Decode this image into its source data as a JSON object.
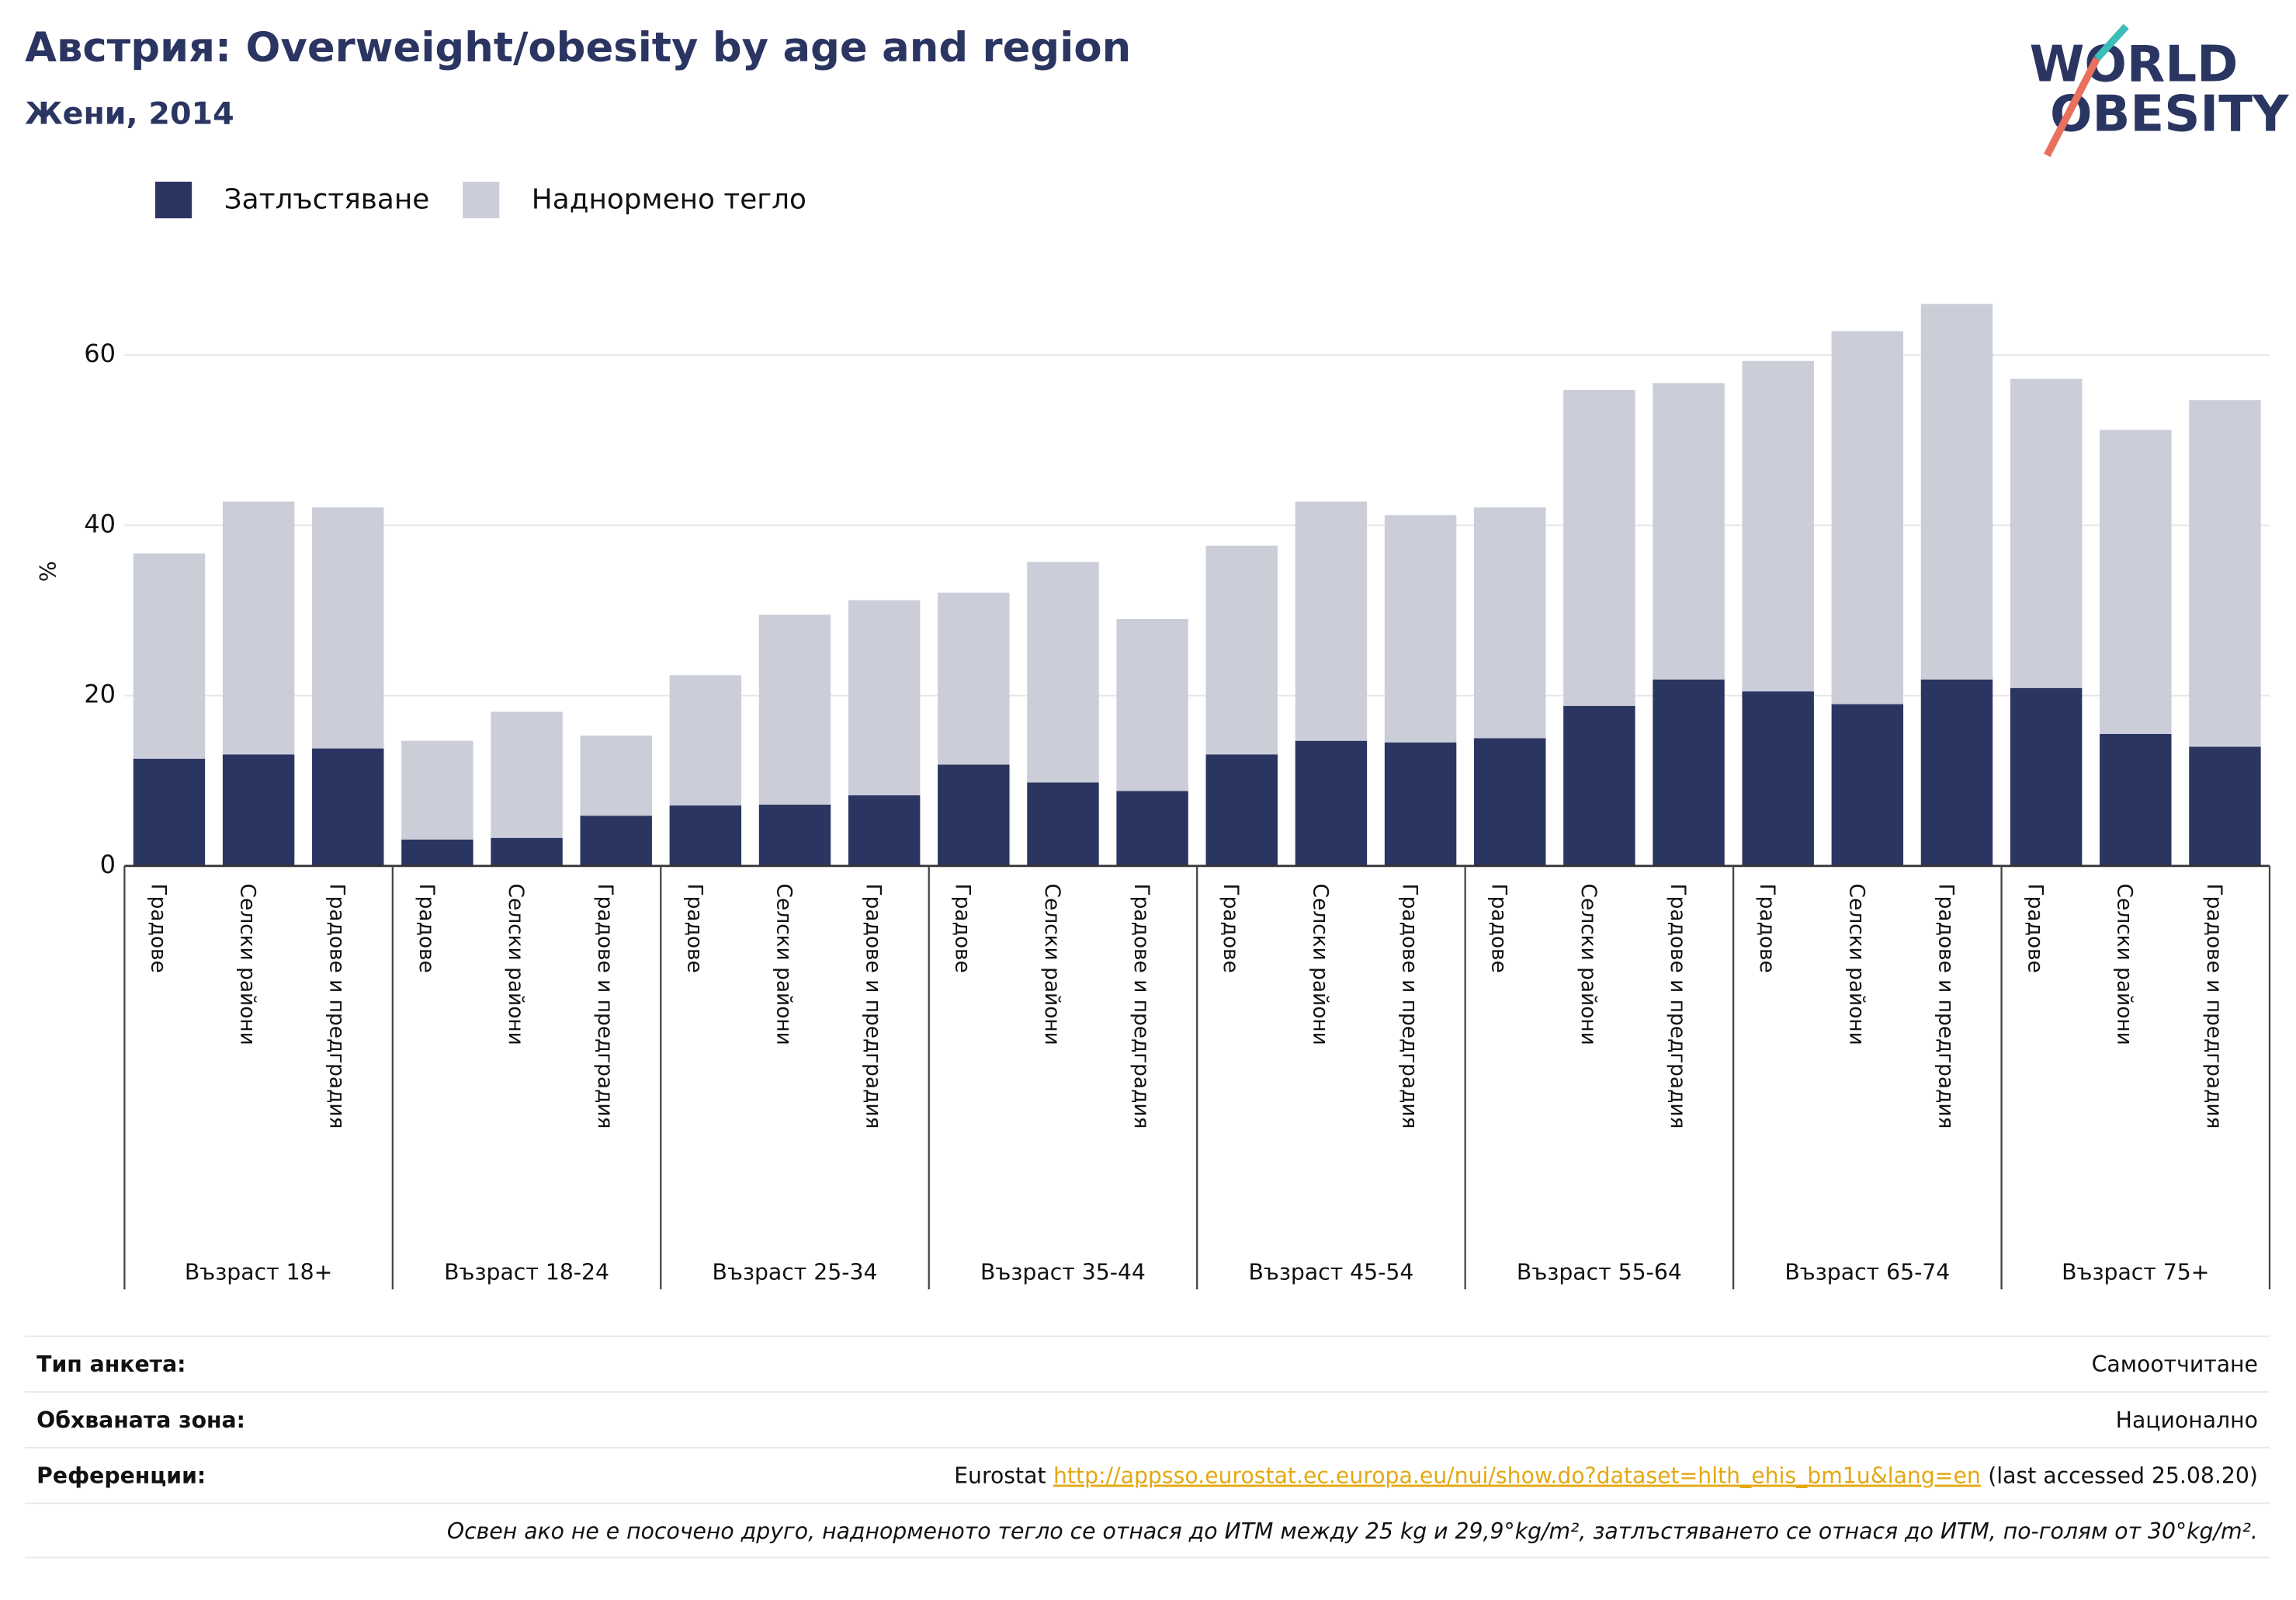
{
  "chart_data": {
    "type": "stacked_bar",
    "title": "Австрия: Overweight/obesity by age and region",
    "subtitle": "Жени, 2014",
    "y_label": "%",
    "groups": [
      "Възраст 18+",
      "Възраст 18-24",
      "Възраст 25-34",
      "Възраст 35-44",
      "Възраст 45-54",
      "Възраст 55-64",
      "Възраст 65-74",
      "Възраст 75+"
    ],
    "categories": [
      "Градове",
      "Селски райони",
      "Градове и предградия",
      "Градове",
      "Селски райони",
      "Градове и предградия",
      "Градове",
      "Селски райони",
      "Градове и предградия",
      "Градове",
      "Селски райони",
      "Градове и предградия",
      "Градове",
      "Селски райони",
      "Градове и предградия",
      "Градове",
      "Селски райони",
      "Градове и предградия",
      "Градове",
      "Селски райони",
      "Градове и предградия",
      "Градове",
      "Селски райони",
      "Градове и предградия"
    ],
    "series": [
      {
        "name": "Затлъстяване",
        "color": "#2b3561",
        "values": [
          12.6,
          13.1,
          13.8,
          3.1,
          3.3,
          5.9,
          7.1,
          7.2,
          8.3,
          11.9,
          9.8,
          8.8,
          13.1,
          14.7,
          14.5,
          15.0,
          18.8,
          21.9,
          20.5,
          19.0,
          21.9,
          20.9,
          15.5,
          14.0
        ]
      },
      {
        "name": "Наднормено тегло",
        "color": "#cbcdd9",
        "values": [
          24.1,
          29.7,
          28.3,
          11.6,
          14.8,
          9.4,
          15.3,
          22.3,
          22.9,
          20.2,
          25.9,
          20.2,
          24.5,
          28.1,
          26.7,
          27.1,
          37.1,
          34.8,
          38.8,
          43.8,
          44.1,
          36.3,
          35.7,
          40.7
        ]
      }
    ],
    "ylim": [
      0,
      69
    ],
    "yticks": [
      0,
      20,
      40,
      60
    ],
    "grid": true
  },
  "logo": [
    "WORLD",
    "OBESITY"
  ],
  "footer": {
    "rows": [
      {
        "label": "Тип анкета:",
        "value": "Самоотчитане"
      },
      {
        "label": "Обхваната зона:",
        "value": "Национално"
      },
      {
        "label": "Референции:",
        "parts": [
          "Eurostat",
          "http://appsso.eurostat.ec.europa.eu/nui/show.do?dataset=hlth_ehis_bm1u&lang=en",
          "(last accessed 25.08.20)"
        ]
      }
    ],
    "note": "Освен ако не е посочено друго, наднорменото тегло се отнася до ИТМ между 25 kg и 29,9°kg/m², затлъстяването се отнася до ИТМ, по-голям от 30°kg/m²."
  }
}
